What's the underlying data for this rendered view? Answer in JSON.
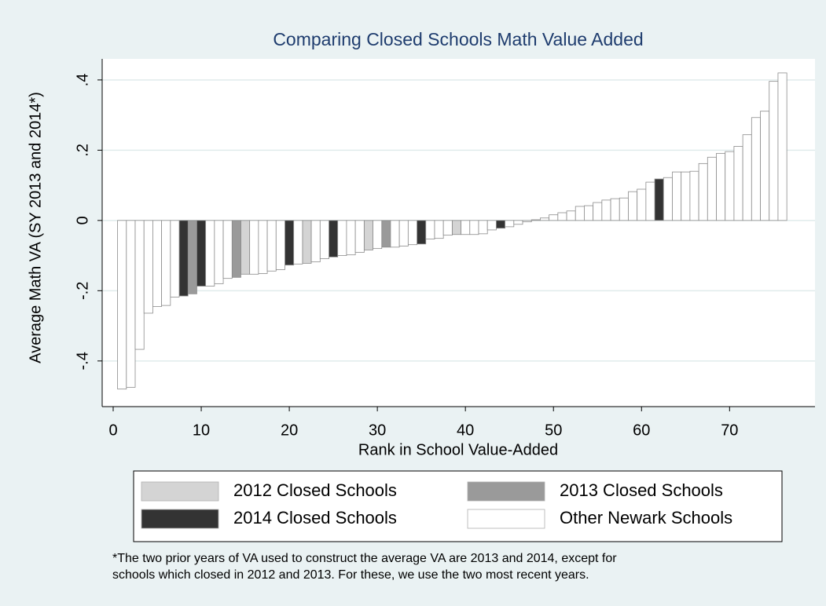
{
  "chart_data": {
    "type": "bar",
    "title": "Comparing Closed Schools Math Value Added",
    "x_label": "Rank in School Value-Added",
    "y_label": "Average Math VA (SY 2013 and 2014*)",
    "note": [
      "*The two prior years of VA used to construct the average VA are 2013 and 2014, except for",
      "schools which closed in 2012 and 2013. For these, we use the two most recent years."
    ],
    "xlim": [
      -1.25,
      79.7
    ],
    "xticks": [
      0,
      10,
      20,
      30,
      40,
      50,
      60,
      70
    ],
    "ylim": [
      -0.53,
      0.46
    ],
    "yticks": [
      {
        "value": -0.4,
        "label": "-.4"
      },
      {
        "value": -0.2,
        "label": "-.2"
      },
      0,
      {
        "value": 0.2,
        "label": ".2"
      },
      {
        "value": 0.4,
        "label": ".4"
      }
    ],
    "grid": true,
    "series": [
      {
        "name": "2012 Closed Schools",
        "color": "#d4d4d4",
        "x": [
          15,
          22,
          29,
          39
        ],
        "values": [
          -0.153,
          -0.122,
          -0.084,
          -0.04
        ]
      },
      {
        "name": "2013 Closed Schools",
        "color": "#9a9a9a",
        "x": [
          9,
          14,
          31
        ],
        "values": [
          -0.209,
          -0.162,
          -0.076
        ]
      },
      {
        "name": "2014 Closed Schools",
        "color": "#333333",
        "x": [
          8,
          10,
          20,
          25,
          35,
          44,
          62
        ],
        "values": [
          -0.215,
          -0.187,
          -0.127,
          -0.104,
          -0.067,
          -0.022,
          0.118
        ]
      },
      {
        "name": "Other Newark Schools",
        "color": "#ffffff",
        "x": [
          1,
          2,
          3,
          4,
          5,
          6,
          7,
          11,
          12,
          13,
          16,
          17,
          18,
          19,
          21,
          23,
          24,
          26,
          27,
          28,
          30,
          32,
          33,
          34,
          36,
          37,
          38,
          40,
          41,
          42,
          43,
          45,
          46,
          47,
          48,
          49,
          50,
          51,
          52,
          53,
          54,
          55,
          56,
          57,
          58,
          59,
          60,
          61,
          63,
          64,
          65,
          66,
          67,
          68,
          69,
          70,
          71,
          72,
          73,
          74,
          75,
          76
        ],
        "values": [
          -0.48,
          -0.475,
          -0.367,
          -0.264,
          -0.245,
          -0.242,
          -0.218,
          -0.187,
          -0.18,
          -0.165,
          -0.153,
          -0.151,
          -0.144,
          -0.14,
          -0.124,
          -0.118,
          -0.109,
          -0.1,
          -0.098,
          -0.091,
          -0.08,
          -0.076,
          -0.073,
          -0.069,
          -0.053,
          -0.051,
          -0.042,
          -0.04,
          -0.04,
          -0.038,
          -0.027,
          -0.018,
          -0.011,
          -0.004,
          0.002,
          0.007,
          0.016,
          0.022,
          0.027,
          0.04,
          0.042,
          0.051,
          0.058,
          0.062,
          0.064,
          0.082,
          0.089,
          0.109,
          0.122,
          0.138,
          0.138,
          0.14,
          0.162,
          0.18,
          0.191,
          0.196,
          0.211,
          0.244,
          0.293,
          0.311,
          0.396,
          0.42
        ]
      }
    ]
  }
}
